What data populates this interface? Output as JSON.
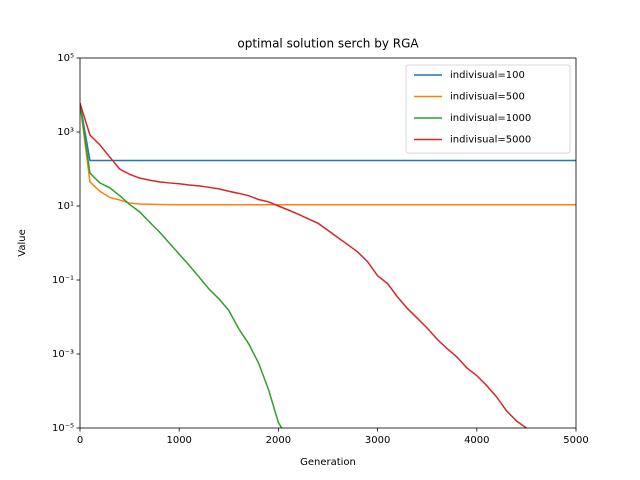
{
  "chart_data": {
    "type": "line",
    "title": "optimal solution serch by RGA",
    "x_label": "Generation",
    "y_label": "Value",
    "xlim": [
      0,
      5000
    ],
    "xticks": [
      0,
      1000,
      2000,
      3000,
      4000,
      5000
    ],
    "ylim": [
      1e-05,
      100000
    ],
    "log_y": true,
    "yticks": [
      {
        "value": 1e-05,
        "label": "10⁻⁵"
      },
      {
        "value": 0.001,
        "label": "10⁻³"
      },
      {
        "value": 0.1,
        "label": "10⁻¹"
      },
      {
        "value": 10,
        "label": "10¹"
      },
      {
        "value": 1000,
        "label": "10³"
      },
      {
        "value": 100000,
        "label": "10⁵"
      }
    ],
    "legend": "upper right",
    "series": [
      {
        "name": "indivisual=100",
        "color": "#1f77b4",
        "x": [
          0,
          100,
          5000
        ],
        "values": [
          6000,
          170,
          170
        ]
      },
      {
        "name": "indivisual=500",
        "color": "#ff7f0e",
        "x": [
          0,
          100,
          200,
          300,
          400,
          500,
          600,
          800,
          1000,
          5000
        ],
        "values": [
          6000,
          45,
          25,
          17,
          14.5,
          12,
          11.3,
          11,
          10.8,
          10.8
        ]
      },
      {
        "name": "indivisual=1000",
        "color": "#2ca02c",
        "x": [
          0,
          100,
          200,
          300,
          400,
          500,
          600,
          700,
          800,
          900,
          1000,
          1100,
          1200,
          1300,
          1400,
          1500,
          1600,
          1700,
          1800,
          1900,
          2000,
          2100
        ],
        "values": [
          6000,
          78,
          42,
          31,
          19,
          11,
          7,
          3.7,
          2,
          1,
          0.5,
          0.25,
          0.12,
          0.057,
          0.031,
          0.015,
          0.0048,
          0.0019,
          0.00057,
          0.00011,
          1.4e-05,
          5e-06
        ]
      },
      {
        "name": "indivisual=5000",
        "color": "#d62728",
        "x": [
          0,
          100,
          200,
          300,
          400,
          500,
          600,
          700,
          800,
          900,
          1000,
          1100,
          1200,
          1300,
          1400,
          1500,
          1600,
          1700,
          1800,
          1900,
          2000,
          2100,
          2200,
          2300,
          2400,
          2500,
          2600,
          2700,
          2800,
          2900,
          3000,
          3100,
          3200,
          3300,
          3400,
          3500,
          3600,
          3700,
          3800,
          3900,
          4000,
          4100,
          4200,
          4300,
          4400,
          4500,
          4600
        ],
        "values": [
          6000,
          830,
          450,
          210,
          100,
          72,
          57,
          50,
          45,
          42,
          40,
          37,
          35,
          32,
          29,
          25,
          22,
          19,
          15,
          13,
          10,
          7.8,
          6,
          4.5,
          3.4,
          2.2,
          1.4,
          0.9,
          0.57,
          0.31,
          0.13,
          0.08,
          0.035,
          0.017,
          0.0093,
          0.005,
          0.0025,
          0.0014,
          0.00083,
          0.00042,
          0.00026,
          0.00014,
          6.9e-05,
          2.9e-05,
          1.55e-05,
          1e-05,
          6e-06
        ]
      }
    ]
  }
}
